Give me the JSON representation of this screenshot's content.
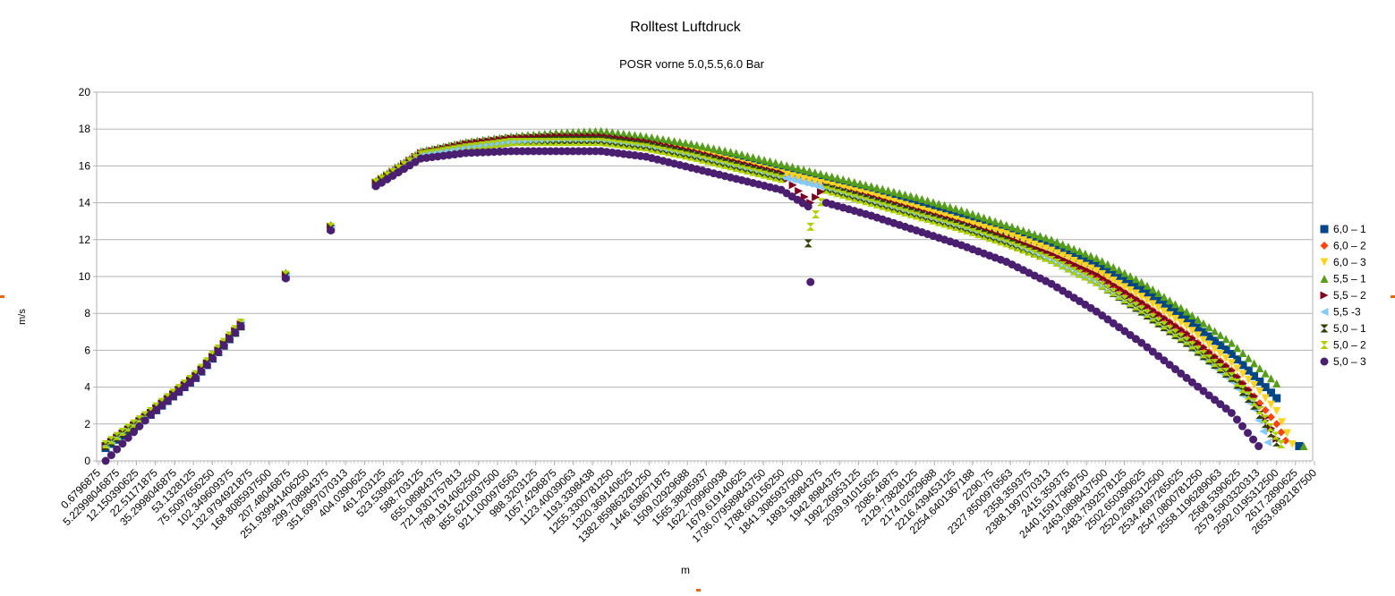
{
  "chart_data": {
    "type": "scatter",
    "title": "Rolltest Luftdruck",
    "subtitle": "POSR vorne 5.0,5.5,6.0 Bar",
    "xlabel": "m",
    "ylabel": "m/s",
    "ylim": [
      0,
      20
    ],
    "yticks": [
      0,
      2,
      4,
      6,
      8,
      10,
      12,
      14,
      16,
      18,
      20
    ],
    "xticks": [
      "0.6796875",
      "5.22998046875",
      "12.150390625",
      "22.51171875",
      "35.2998046875",
      "53.1328125",
      "75.5097656250",
      "102.349609375",
      "132.9794921875",
      "168.8085937500",
      "207.48046875",
      "251.939941406250",
      "299.708984375",
      "351.6997070313",
      "404.0390625",
      "461.203125",
      "523.5390625",
      "588.703125",
      "655.08984375",
      "721.9301757813",
      "789.1914062500",
      "855.6210937500",
      "921.1000976563",
      "988.3203125",
      "1057.4296875",
      "1123.40039063",
      "1193.3398438",
      "1255.3300781250",
      "1320.369140625",
      "1382.859863281250",
      "1446.638671875",
      "1509.02929688",
      "1565.38085937",
      "1622.709960938",
      "1679.619140625",
      "1736.079589843750",
      "1788.660156250",
      "1841.3085937500",
      "1893.58984375",
      "1942.8984375",
      "1992.26953125",
      "2039.91015625",
      "2085.46875",
      "2129.73828125",
      "2174.02929688",
      "2216.439453125",
      "2254.6401367188",
      "2290.75",
      "2327.8500976563",
      "2358.359375",
      "2388.1997070313",
      "2415.359375",
      "2440.15917968750",
      "2463.0898437500",
      "2483.7392578125",
      "2502.650390625",
      "2520.2695312500",
      "2534.4697265625",
      "2547.0800781250",
      "2558.1196289063",
      "2568.5390625",
      "2579.5903320313",
      "2592.0195312500",
      "2617.2890625",
      "2653.6992187500"
    ],
    "legend_position": "right",
    "grid": true,
    "series": [
      {
        "name": "6,0 – 1",
        "color": "#004586",
        "marker": "square",
        "x": [
          0,
          100,
          200,
          300,
          400,
          500,
          600,
          700,
          800,
          900,
          1000,
          1100,
          1200,
          1300,
          1400,
          1500,
          1600,
          1700,
          1800,
          1900,
          2000,
          2100,
          2200,
          2300,
          2400,
          2500,
          2550,
          2600,
          2650
        ],
        "y": [
          0.7,
          2.5,
          4.5,
          7.3,
          10.0,
          12.6,
          15.0,
          16.6,
          17.0,
          17.3,
          17.5,
          17.5,
          17.3,
          16.9,
          16.3,
          15.8,
          15.2,
          14.6,
          13.9,
          13.2,
          12.5,
          11.7,
          10.6,
          9.3,
          7.7,
          5.8,
          4.6,
          3.4,
          0.8
        ]
      },
      {
        "name": "6,0 – 2",
        "color": "#ff420e",
        "marker": "diamond",
        "x": [
          0,
          100,
          200,
          300,
          400,
          500,
          600,
          700,
          800,
          900,
          1000,
          1100,
          1200,
          1300,
          1400,
          1500,
          1600,
          1700,
          1800,
          1900,
          2000,
          2100,
          2200,
          2300,
          2400,
          2500,
          2550,
          2600,
          2620
        ],
        "y": [
          0.9,
          2.7,
          4.7,
          7.4,
          10.1,
          12.7,
          15.1,
          16.7,
          17.1,
          17.4,
          17.5,
          17.5,
          17.2,
          16.7,
          16.1,
          15.5,
          14.9,
          14.3,
          13.6,
          12.9,
          12.1,
          11.2,
          10.1,
          8.6,
          6.9,
          4.9,
          3.5,
          2.0,
          1.1
        ]
      },
      {
        "name": "6,0 – 3",
        "color": "#ffd320",
        "marker": "triangle-down",
        "x": [
          0,
          100,
          200,
          300,
          400,
          500,
          600,
          700,
          800,
          900,
          1000,
          1100,
          1200,
          1300,
          1400,
          1500,
          1600,
          1700,
          1800,
          1900,
          2000,
          2100,
          2200,
          2300,
          2400,
          2500,
          2550,
          2600,
          2635
        ],
        "y": [
          0.8,
          2.6,
          4.6,
          7.4,
          10.1,
          12.6,
          15.0,
          16.6,
          17.0,
          17.3,
          17.4,
          17.4,
          17.2,
          16.8,
          16.2,
          15.6,
          15.0,
          14.4,
          13.7,
          13.0,
          12.3,
          11.4,
          10.3,
          8.9,
          7.3,
          5.3,
          4.1,
          2.7,
          0.9
        ]
      },
      {
        "name": "5,5 – 1",
        "color": "#579d1c",
        "marker": "triangle-up",
        "x": [
          0,
          100,
          200,
          300,
          400,
          500,
          600,
          700,
          800,
          900,
          1000,
          1100,
          1200,
          1300,
          1400,
          1500,
          1600,
          1700,
          1800,
          1900,
          2000,
          2100,
          2200,
          2300,
          2400,
          2500,
          2550,
          2600,
          2660
        ],
        "y": [
          0.9,
          2.7,
          4.7,
          7.5,
          10.2,
          12.8,
          15.2,
          16.8,
          17.3,
          17.6,
          17.8,
          17.9,
          17.6,
          17.2,
          16.7,
          16.1,
          15.5,
          14.9,
          14.3,
          13.6,
          12.8,
          12.0,
          11.0,
          9.7,
          8.1,
          6.4,
          5.3,
          4.2,
          0.8
        ]
      },
      {
        "name": "5,5 – 2",
        "color": "#7e0021",
        "marker": "triangle-right",
        "x": [
          0,
          100,
          200,
          300,
          400,
          500,
          600,
          700,
          800,
          900,
          1000,
          1100,
          1200,
          1300,
          1400,
          1500,
          1565,
          1600,
          1700,
          1800,
          1900,
          2000,
          2100,
          2200,
          2300,
          2400,
          2500,
          2550,
          2600
        ],
        "y": [
          0.8,
          2.6,
          4.6,
          7.4,
          10.1,
          12.7,
          15.1,
          16.7,
          17.2,
          17.5,
          17.6,
          17.6,
          17.3,
          16.8,
          16.2,
          15.6,
          14.0,
          14.9,
          14.3,
          13.6,
          12.9,
          12.1,
          11.2,
          10.1,
          8.6,
          6.9,
          4.9,
          3.5,
          1.2
        ]
      },
      {
        "name": "5,5 -3",
        "color": "#83caff",
        "marker": "triangle-left",
        "x": [
          0,
          100,
          200,
          300,
          400,
          500,
          600,
          700,
          800,
          900,
          1000,
          1100,
          1200,
          1300,
          1400,
          1500,
          1600,
          1700,
          1800,
          1900,
          2000,
          2100,
          2200,
          2300,
          2400,
          2500,
          2550,
          2580
        ],
        "y": [
          0.8,
          2.6,
          4.6,
          7.4,
          10.0,
          12.6,
          15.0,
          16.6,
          17.0,
          17.3,
          17.4,
          17.4,
          17.1,
          16.6,
          16.0,
          15.4,
          14.8,
          14.1,
          13.4,
          12.7,
          11.8,
          10.8,
          9.6,
          8.0,
          6.3,
          4.3,
          2.8,
          1.0
        ]
      },
      {
        "name": "5,0 – 1",
        "color": "#314004",
        "marker": "bowtie",
        "x": [
          0,
          100,
          200,
          300,
          400,
          500,
          600,
          700,
          800,
          900,
          1000,
          1100,
          1200,
          1300,
          1400,
          1500,
          1560,
          1600,
          1700,
          1800,
          1900,
          2000,
          2100,
          2200,
          2300,
          2400,
          2500,
          2550,
          2600
        ],
        "y": [
          0.8,
          2.6,
          4.6,
          7.3,
          10.0,
          12.6,
          15.0,
          16.6,
          17.0,
          17.3,
          17.4,
          17.4,
          17.1,
          16.6,
          16.0,
          15.4,
          11.8,
          14.8,
          14.1,
          13.4,
          12.7,
          11.9,
          10.9,
          9.7,
          8.1,
          6.4,
          4.5,
          3.0,
          1.0
        ]
      },
      {
        "name": "5,0 – 2",
        "color": "#aecf00",
        "marker": "hourglass",
        "x": [
          0,
          100,
          200,
          300,
          400,
          500,
          600,
          700,
          800,
          900,
          1000,
          1100,
          1200,
          1300,
          1400,
          1500,
          1565,
          1600,
          1700,
          1800,
          1900,
          2000,
          2100,
          2200,
          2300,
          2400,
          2500,
          2550,
          2610
        ],
        "y": [
          0.9,
          2.7,
          4.7,
          7.5,
          10.1,
          12.7,
          15.1,
          16.6,
          17.0,
          17.3,
          17.3,
          17.3,
          17.0,
          16.5,
          15.9,
          15.3,
          12.7,
          14.7,
          14.0,
          13.3,
          12.6,
          11.8,
          10.9,
          9.7,
          8.2,
          6.5,
          4.6,
          3.2,
          0.9
        ]
      },
      {
        "name": "5,0 – 3",
        "color": "#4b1f6f",
        "marker": "circle",
        "x": [
          0,
          100,
          200,
          300,
          400,
          500,
          600,
          700,
          800,
          900,
          1000,
          1100,
          1200,
          1300,
          1400,
          1500,
          1560,
          1565,
          1600,
          1700,
          1800,
          1900,
          2000,
          2100,
          2200,
          2300,
          2400,
          2500,
          2560
        ],
        "y": [
          0.0,
          2.5,
          4.5,
          7.3,
          9.9,
          12.5,
          14.9,
          16.4,
          16.7,
          16.8,
          16.8,
          16.8,
          16.5,
          15.9,
          15.3,
          14.7,
          13.8,
          9.7,
          14.0,
          13.3,
          12.5,
          11.7,
          10.8,
          9.6,
          8.1,
          6.4,
          4.5,
          2.6,
          0.8
        ]
      }
    ]
  }
}
